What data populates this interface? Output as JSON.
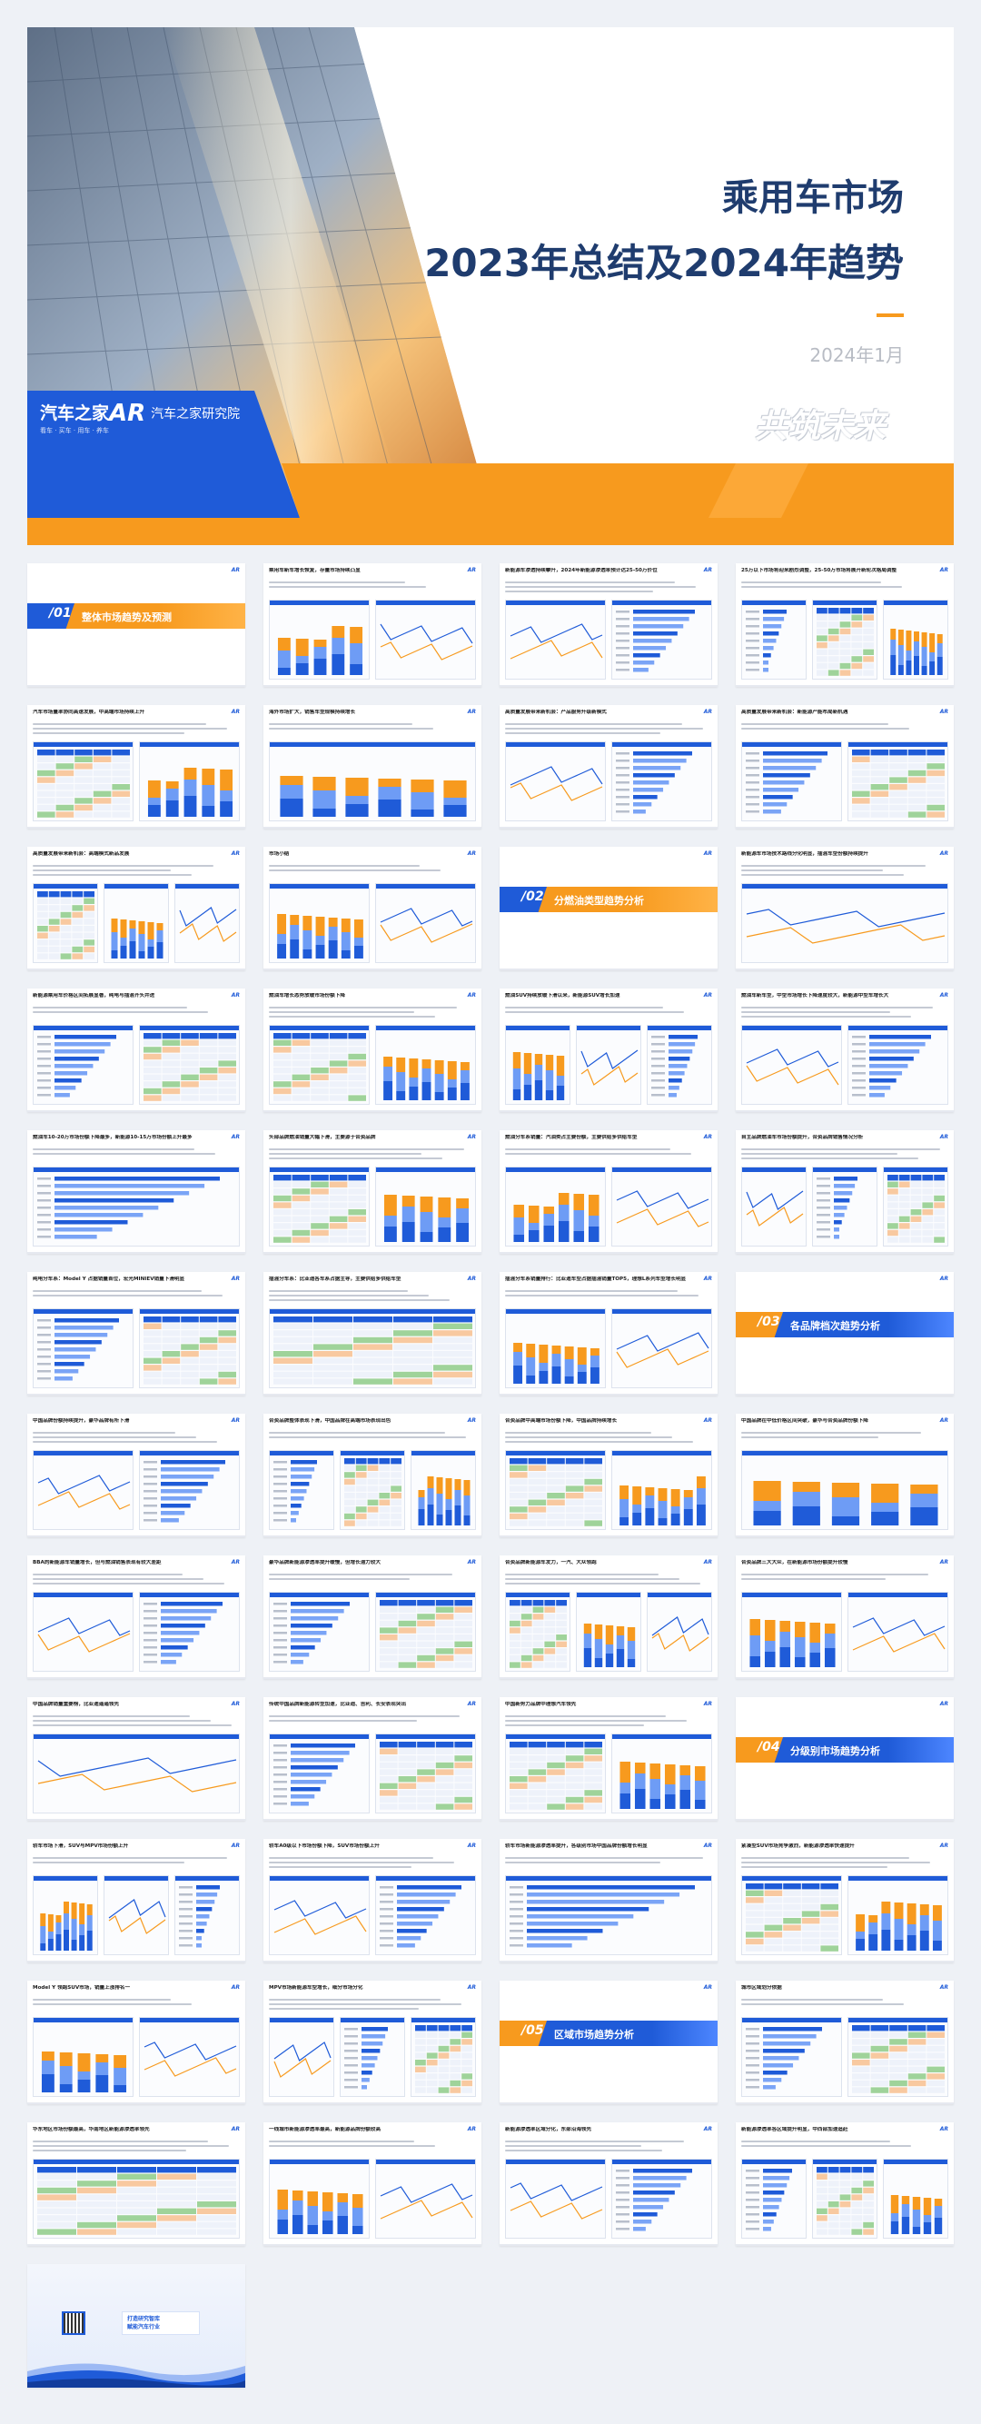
{
  "cover": {
    "title_line1": "乘用车市场",
    "title_line2": "2023年总结及2024年趋势",
    "date": "2024年1月",
    "slogan": "共筑未来",
    "brand1_name": "汽车之家",
    "brand1_tag": "看车 · 买车 · 用车 · 养车",
    "brand2_mark": "AR",
    "brand2_name": "汽车之家研究院",
    "colors": {
      "navy": "#1f3c6e",
      "blue": "#1f5bd8",
      "orange": "#f79a1e"
    }
  },
  "logo_text": "AR",
  "sections": [
    {
      "num": "/01",
      "title": "整体市场趋势及预测"
    },
    {
      "num": "/02",
      "title": "分燃油类型趋势分析"
    },
    {
      "num": "/03",
      "title": "各品牌档次趋势分析"
    },
    {
      "num": "/04",
      "title": "分级别市场趋势分析"
    },
    {
      "num": "/05",
      "title": "区域市场趋势分析"
    }
  ],
  "slides": [
    "乘用车新车增长恢复，存量市场持续凸显",
    "新能源车渗透持续攀升，2024年新能源渗透率预计达25-50万价位",
    "25万以下市场将迎来剧烈调整，25-50万市场将展开新轮次格局调整",
    "汽车市场量率协同高速发展，中高端市场持续上升",
    "海外市场扩大，销售车型规模持续增长",
    "高质量发展带来新机会：产品服务升级新模式",
    "高质量发展带来新机会：新能源产能布局新机遇",
    "高质量发展带来新机会：高端模式新品发展",
    "市场小结",
    "新能源车市场技术路线分化明显，插混车型份额持续提升",
    "新能源乘用车价格区间拓展显著，纯电与插混齐头并进",
    "燃油车增长态势放缓市场份额下降",
    "燃油SUV持续放缓下滑以来，新能源SUV增长加速",
    "燃油车新车型，中型市场增长下降速度较大，新能源中型车增长大",
    "燃油车10-20万市场份额下降最多，新能源10-15万市场份额上升最多",
    "头部品牌燃油销量大幅下滑，主要源于合资品牌",
    "燃油分车系销量：汽油类占主要份额，主要供给多供给车型",
    "自主品牌燃油车市场份额提升，合资品牌销售情况分析",
    "纯电分车系：Model Y 占据销量首位，宏光MINIEV销量下滑明显",
    "插混分车系：比亚迪各车系占据主导，主要供给多供给车型",
    "插混分车系销量排行：比亚迪车型占据插混销量TOP5，理想L系列车型增长明显",
    "中国品牌份额持续提升，豪华品牌有所下滑",
    "合资品牌整体表现下滑，中国品牌在高端市场表现出色",
    "合资品牌中高端市场份额下降，中国品牌持续增长",
    "中国品牌在中低价格区间突破，豪华与合资品牌份额下降",
    "BBA的新能源车销量增长，但与燃油销售表现有较大差距",
    "豪华品牌新能源渗透率提升缓慢，但增长潜力较大",
    "合资品牌新能源车发力，一汽、大众领跑",
    "合资品牌三大大众，在新能源市场份额提升较慢",
    "中国品牌销量重要榜，比亚迪遥遥领先",
    "传统中国品牌新能源转型加速，比亚迪、吉利、长安表现突出",
    "中国新势力品牌中理想汽车领先",
    "轿车市场下滑，SUV与MPV市场份额上升",
    "轿车A0级以下市场份额下降，SUV市场份额上升",
    "轿车市场新能源渗透率提升，各级别市场中国品牌份额增长明显",
    "紧凑型SUV市场竞争激烈，新能源渗透率快速提升",
    "Model Y 领跑SUV市场，销量上涨排名一",
    "MPV市场新能源车型增长，细分市场分化",
    "城市区域划分依据",
    "华东地区市场份额最高，华南地区新能源渗透率领先",
    "一线城市新能源渗透率最高，新能源品牌份额较高",
    "新能源渗透率区域分化，东部沿海领先",
    "新能源渗透率各区域提升明显，中西部加速追赶"
  ],
  "end_slide": {
    "line1": "打造研究智库",
    "line2": "赋能汽车行业"
  }
}
